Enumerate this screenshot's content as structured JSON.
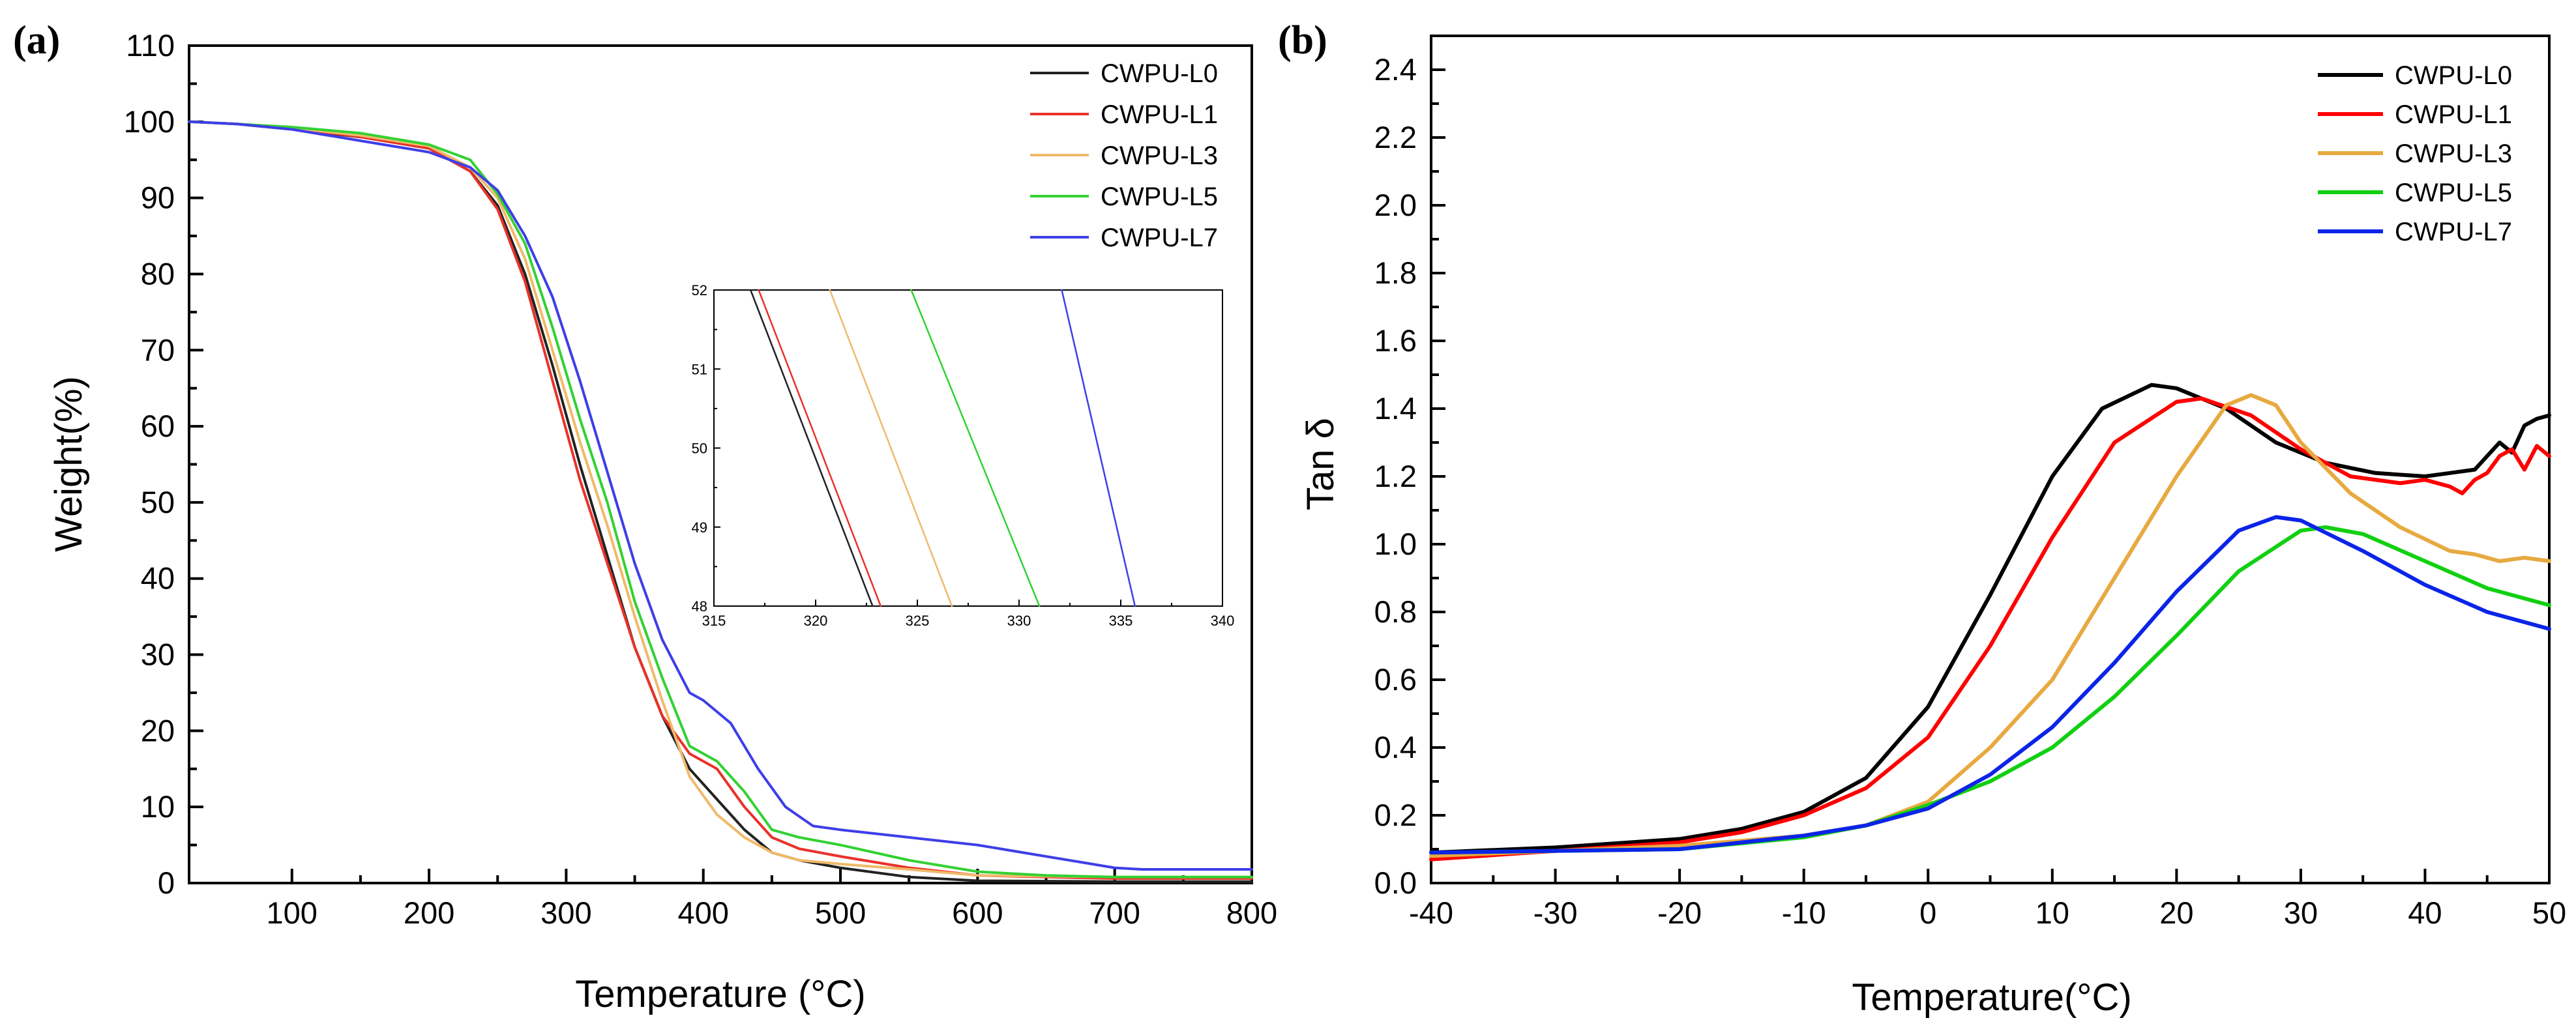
{
  "panels": {
    "a_label": "(a)",
    "b_label": "(b)"
  },
  "chart_data": [
    {
      "type": "line",
      "panel": "(a)",
      "xlabel": "Temperature (°C)",
      "ylabel": "Weight(%)",
      "xlim": [
        25,
        800
      ],
      "ylim": [
        0,
        110
      ],
      "xticks": [
        100,
        200,
        300,
        400,
        500,
        600,
        700,
        800
      ],
      "yticks": [
        0,
        10,
        20,
        30,
        40,
        50,
        60,
        70,
        80,
        90,
        100,
        110
      ],
      "grid": false,
      "legend_position": "top-right",
      "series": [
        {
          "name": "CWPU-L0",
          "color": "#222222",
          "x": [
            25,
            60,
            100,
            150,
            200,
            230,
            250,
            270,
            290,
            310,
            330,
            350,
            370,
            390,
            410,
            430,
            450,
            470,
            500,
            550,
            600,
            700,
            800
          ],
          "y": [
            100,
            99.7,
            99,
            98,
            96.5,
            93.5,
            89,
            80,
            68,
            55,
            43,
            31,
            22,
            15,
            11,
            7,
            4,
            3,
            2,
            0.8,
            0.3,
            0.2,
            0.2
          ]
        },
        {
          "name": "CWPU-L1",
          "color": "#e8322a",
          "x": [
            25,
            60,
            100,
            150,
            200,
            230,
            250,
            270,
            290,
            310,
            330,
            350,
            370,
            390,
            410,
            430,
            450,
            470,
            500,
            550,
            600,
            700,
            800
          ],
          "y": [
            100,
            99.7,
            99.2,
            98,
            96.5,
            93.5,
            88.5,
            79,
            66,
            53,
            42,
            31,
            22,
            17,
            15,
            10,
            6,
            4.5,
            3.5,
            2,
            1,
            0.6,
            0.6
          ]
        },
        {
          "name": "CWPU-L3",
          "color": "#f0ba6a",
          "x": [
            25,
            60,
            100,
            150,
            200,
            230,
            250,
            270,
            290,
            310,
            330,
            350,
            370,
            390,
            410,
            430,
            450,
            470,
            500,
            550,
            600,
            700,
            800
          ],
          "y": [
            100,
            99.7,
            99.2,
            98.2,
            96.8,
            94,
            90,
            82,
            70,
            58,
            47,
            35,
            24,
            14,
            9,
            6,
            4,
            3,
            2.5,
            1.8,
            1,
            0.8,
            0.8
          ]
        },
        {
          "name": "CWPU-L5",
          "color": "#33d133",
          "x": [
            25,
            60,
            100,
            150,
            200,
            230,
            250,
            270,
            290,
            310,
            330,
            350,
            370,
            390,
            410,
            430,
            450,
            470,
            500,
            550,
            600,
            650,
            700,
            800
          ],
          "y": [
            100,
            99.7,
            99.3,
            98.5,
            97,
            95,
            90.5,
            84,
            73,
            61,
            50,
            37,
            27,
            18,
            16,
            12,
            7,
            6,
            5,
            3,
            1.5,
            1,
            0.8,
            0.8
          ]
        },
        {
          "name": "CWPU-L7",
          "color": "#3e3ee8",
          "x": [
            25,
            60,
            100,
            150,
            200,
            230,
            250,
            270,
            290,
            310,
            330,
            350,
            370,
            390,
            400,
            420,
            440,
            460,
            480,
            500,
            550,
            600,
            650,
            700,
            720,
            800
          ],
          "y": [
            100,
            99.7,
            99,
            97.5,
            96,
            94,
            91,
            85,
            77,
            66,
            54,
            42,
            32,
            25,
            24,
            21,
            15,
            10,
            7.5,
            7,
            6,
            5,
            3.5,
            2,
            1.8,
            1.8
          ]
        }
      ]
    },
    {
      "type": "line",
      "panel": "(a) inset",
      "xlim": [
        315,
        340
      ],
      "ylim": [
        48,
        52
      ],
      "xticks": [
        315,
        320,
        325,
        330,
        335,
        340
      ],
      "yticks": [
        48,
        49,
        50,
        51,
        52
      ],
      "series": [
        {
          "name": "CWPU-L0",
          "color": "#222222",
          "x": [
            316.8,
            322.8
          ],
          "y": [
            52,
            48
          ]
        },
        {
          "name": "CWPU-L1",
          "color": "#e8322a",
          "x": [
            317.2,
            323.2
          ],
          "y": [
            52,
            48
          ]
        },
        {
          "name": "CWPU-L3",
          "color": "#f0ba6a",
          "x": [
            320.7,
            326.7
          ],
          "y": [
            52,
            48
          ]
        },
        {
          "name": "CWPU-L5",
          "color": "#33d133",
          "x": [
            324.7,
            331.0
          ],
          "y": [
            52,
            48
          ]
        },
        {
          "name": "CWPU-L7",
          "color": "#3e3ee8",
          "x": [
            332.1,
            335.7
          ],
          "y": [
            52,
            48
          ]
        }
      ]
    },
    {
      "type": "line",
      "panel": "(b)",
      "xlabel": "Temperature(°C)",
      "ylabel": "Tan δ",
      "xlim": [
        -40,
        50
      ],
      "ylim": [
        0,
        2.5
      ],
      "xticks": [
        -40,
        -30,
        -20,
        -10,
        0,
        10,
        20,
        30,
        40,
        50
      ],
      "yticks": [
        0.0,
        0.2,
        0.4,
        0.6,
        0.8,
        1.0,
        1.2,
        1.4,
        1.6,
        1.8,
        2.0,
        2.2,
        2.4
      ],
      "ytick_labels": [
        "0.0",
        "0.2",
        "0.4",
        "0.6",
        "0.8",
        "1.0",
        "1.2",
        "1.4",
        "1.6",
        "1.8",
        "2.0",
        "2.2",
        "2.4"
      ],
      "grid": false,
      "legend_position": "top-right",
      "series": [
        {
          "name": "CWPU-L0",
          "color": "#000000",
          "x": [
            -40,
            -30,
            -20,
            -15,
            -10,
            -5,
            0,
            5,
            10,
            14,
            18,
            20,
            24,
            28,
            32,
            36,
            40,
            42,
            44,
            46,
            47,
            48,
            49,
            50
          ],
          "y": [
            0.09,
            0.105,
            0.13,
            0.16,
            0.21,
            0.31,
            0.52,
            0.85,
            1.2,
            1.4,
            1.47,
            1.46,
            1.4,
            1.3,
            1.24,
            1.21,
            1.2,
            1.21,
            1.22,
            1.3,
            1.27,
            1.35,
            1.37,
            1.38
          ]
        },
        {
          "name": "CWPU-L1",
          "color": "#ff0000",
          "x": [
            -40,
            -30,
            -20,
            -15,
            -10,
            -5,
            0,
            5,
            10,
            15,
            20,
            22,
            26,
            30,
            34,
            38,
            40,
            42,
            43,
            44,
            45,
            46,
            47,
            48,
            49,
            50
          ],
          "y": [
            0.07,
            0.095,
            0.12,
            0.15,
            0.2,
            0.28,
            0.43,
            0.7,
            1.02,
            1.3,
            1.42,
            1.43,
            1.38,
            1.28,
            1.2,
            1.18,
            1.19,
            1.17,
            1.15,
            1.19,
            1.21,
            1.26,
            1.28,
            1.22,
            1.29,
            1.26
          ]
        },
        {
          "name": "CWPU-L3",
          "color": "#e7a940",
          "x": [
            -40,
            -30,
            -20,
            -10,
            -5,
            0,
            5,
            10,
            15,
            20,
            24,
            26,
            28,
            30,
            34,
            38,
            42,
            44,
            46,
            48,
            50
          ],
          "y": [
            0.08,
            0.095,
            0.11,
            0.14,
            0.17,
            0.24,
            0.4,
            0.6,
            0.9,
            1.2,
            1.41,
            1.44,
            1.41,
            1.3,
            1.15,
            1.05,
            0.98,
            0.97,
            0.95,
            0.96,
            0.95
          ]
        },
        {
          "name": "CWPU-L5",
          "color": "#11d011",
          "x": [
            -40,
            -30,
            -20,
            -10,
            -5,
            0,
            5,
            10,
            15,
            20,
            25,
            30,
            32,
            35,
            40,
            45,
            50
          ],
          "y": [
            0.09,
            0.095,
            0.1,
            0.135,
            0.17,
            0.23,
            0.3,
            0.4,
            0.55,
            0.73,
            0.92,
            1.04,
            1.05,
            1.03,
            0.95,
            0.87,
            0.82
          ]
        },
        {
          "name": "CWPU-L7",
          "color": "#0b24e8",
          "x": [
            -40,
            -30,
            -20,
            -10,
            -5,
            0,
            5,
            10,
            15,
            20,
            25,
            28,
            30,
            35,
            40,
            45,
            48,
            50
          ],
          "y": [
            0.09,
            0.095,
            0.1,
            0.14,
            0.17,
            0.22,
            0.32,
            0.46,
            0.65,
            0.86,
            1.04,
            1.08,
            1.07,
            0.98,
            0.88,
            0.8,
            0.77,
            0.75
          ]
        }
      ]
    }
  ]
}
